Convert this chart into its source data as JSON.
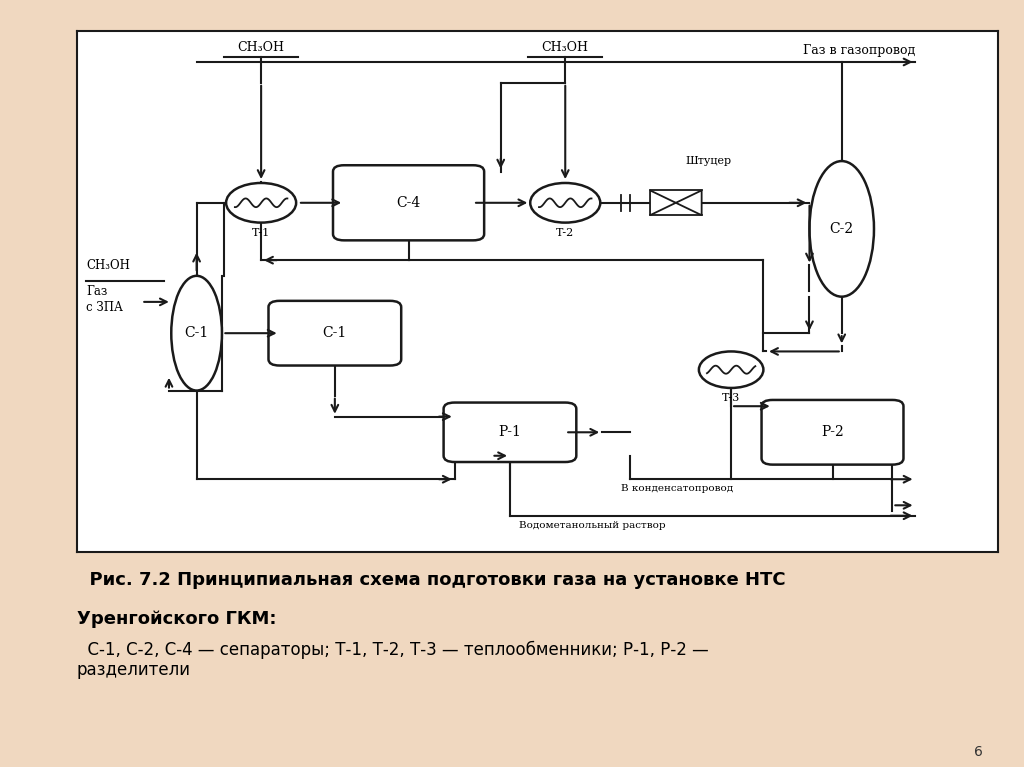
{
  "bg_color": "#f0d8c0",
  "diagram_bg": "#ffffff",
  "line_color": "#1a1a1a",
  "fill_color": "#ffffff",
  "title_line1": "  Рис. 7.2 Принципиальная схема подготовки газа на установке НТС",
  "title_line2": "Уренгойского ГКМ:",
  "caption": "  С-1, С-2, С-4 — сепараторы; Т-1, Т-2, Т-3 — теплообменники; Р-1, Р-2 —\nразделители"
}
